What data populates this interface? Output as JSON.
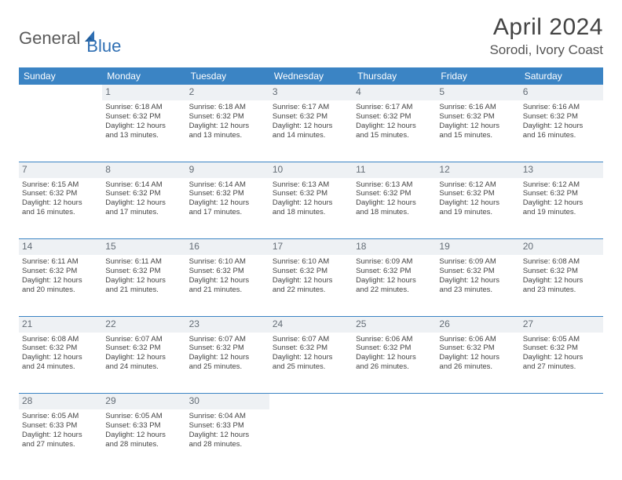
{
  "logo": {
    "part1": "General",
    "part2": "Blue"
  },
  "title": {
    "month": "April 2024",
    "location": "Sorodi, Ivory Coast"
  },
  "colors": {
    "header_bg": "#3b84c4",
    "daynum_bg": "#eef1f4",
    "rule": "#3b84c4"
  },
  "weekdays": [
    "Sunday",
    "Monday",
    "Tuesday",
    "Wednesday",
    "Thursday",
    "Friday",
    "Saturday"
  ],
  "weeks": [
    [
      null,
      {
        "n": "1",
        "sr": "Sunrise: 6:18 AM",
        "ss": "Sunset: 6:32 PM",
        "d1": "Daylight: 12 hours",
        "d2": "and 13 minutes."
      },
      {
        "n": "2",
        "sr": "Sunrise: 6:18 AM",
        "ss": "Sunset: 6:32 PM",
        "d1": "Daylight: 12 hours",
        "d2": "and 13 minutes."
      },
      {
        "n": "3",
        "sr": "Sunrise: 6:17 AM",
        "ss": "Sunset: 6:32 PM",
        "d1": "Daylight: 12 hours",
        "d2": "and 14 minutes."
      },
      {
        "n": "4",
        "sr": "Sunrise: 6:17 AM",
        "ss": "Sunset: 6:32 PM",
        "d1": "Daylight: 12 hours",
        "d2": "and 15 minutes."
      },
      {
        "n": "5",
        "sr": "Sunrise: 6:16 AM",
        "ss": "Sunset: 6:32 PM",
        "d1": "Daylight: 12 hours",
        "d2": "and 15 minutes."
      },
      {
        "n": "6",
        "sr": "Sunrise: 6:16 AM",
        "ss": "Sunset: 6:32 PM",
        "d1": "Daylight: 12 hours",
        "d2": "and 16 minutes."
      }
    ],
    [
      {
        "n": "7",
        "sr": "Sunrise: 6:15 AM",
        "ss": "Sunset: 6:32 PM",
        "d1": "Daylight: 12 hours",
        "d2": "and 16 minutes."
      },
      {
        "n": "8",
        "sr": "Sunrise: 6:14 AM",
        "ss": "Sunset: 6:32 PM",
        "d1": "Daylight: 12 hours",
        "d2": "and 17 minutes."
      },
      {
        "n": "9",
        "sr": "Sunrise: 6:14 AM",
        "ss": "Sunset: 6:32 PM",
        "d1": "Daylight: 12 hours",
        "d2": "and 17 minutes."
      },
      {
        "n": "10",
        "sr": "Sunrise: 6:13 AM",
        "ss": "Sunset: 6:32 PM",
        "d1": "Daylight: 12 hours",
        "d2": "and 18 minutes."
      },
      {
        "n": "11",
        "sr": "Sunrise: 6:13 AM",
        "ss": "Sunset: 6:32 PM",
        "d1": "Daylight: 12 hours",
        "d2": "and 18 minutes."
      },
      {
        "n": "12",
        "sr": "Sunrise: 6:12 AM",
        "ss": "Sunset: 6:32 PM",
        "d1": "Daylight: 12 hours",
        "d2": "and 19 minutes."
      },
      {
        "n": "13",
        "sr": "Sunrise: 6:12 AM",
        "ss": "Sunset: 6:32 PM",
        "d1": "Daylight: 12 hours",
        "d2": "and 19 minutes."
      }
    ],
    [
      {
        "n": "14",
        "sr": "Sunrise: 6:11 AM",
        "ss": "Sunset: 6:32 PM",
        "d1": "Daylight: 12 hours",
        "d2": "and 20 minutes."
      },
      {
        "n": "15",
        "sr": "Sunrise: 6:11 AM",
        "ss": "Sunset: 6:32 PM",
        "d1": "Daylight: 12 hours",
        "d2": "and 21 minutes."
      },
      {
        "n": "16",
        "sr": "Sunrise: 6:10 AM",
        "ss": "Sunset: 6:32 PM",
        "d1": "Daylight: 12 hours",
        "d2": "and 21 minutes."
      },
      {
        "n": "17",
        "sr": "Sunrise: 6:10 AM",
        "ss": "Sunset: 6:32 PM",
        "d1": "Daylight: 12 hours",
        "d2": "and 22 minutes."
      },
      {
        "n": "18",
        "sr": "Sunrise: 6:09 AM",
        "ss": "Sunset: 6:32 PM",
        "d1": "Daylight: 12 hours",
        "d2": "and 22 minutes."
      },
      {
        "n": "19",
        "sr": "Sunrise: 6:09 AM",
        "ss": "Sunset: 6:32 PM",
        "d1": "Daylight: 12 hours",
        "d2": "and 23 minutes."
      },
      {
        "n": "20",
        "sr": "Sunrise: 6:08 AM",
        "ss": "Sunset: 6:32 PM",
        "d1": "Daylight: 12 hours",
        "d2": "and 23 minutes."
      }
    ],
    [
      {
        "n": "21",
        "sr": "Sunrise: 6:08 AM",
        "ss": "Sunset: 6:32 PM",
        "d1": "Daylight: 12 hours",
        "d2": "and 24 minutes."
      },
      {
        "n": "22",
        "sr": "Sunrise: 6:07 AM",
        "ss": "Sunset: 6:32 PM",
        "d1": "Daylight: 12 hours",
        "d2": "and 24 minutes."
      },
      {
        "n": "23",
        "sr": "Sunrise: 6:07 AM",
        "ss": "Sunset: 6:32 PM",
        "d1": "Daylight: 12 hours",
        "d2": "and 25 minutes."
      },
      {
        "n": "24",
        "sr": "Sunrise: 6:07 AM",
        "ss": "Sunset: 6:32 PM",
        "d1": "Daylight: 12 hours",
        "d2": "and 25 minutes."
      },
      {
        "n": "25",
        "sr": "Sunrise: 6:06 AM",
        "ss": "Sunset: 6:32 PM",
        "d1": "Daylight: 12 hours",
        "d2": "and 26 minutes."
      },
      {
        "n": "26",
        "sr": "Sunrise: 6:06 AM",
        "ss": "Sunset: 6:32 PM",
        "d1": "Daylight: 12 hours",
        "d2": "and 26 minutes."
      },
      {
        "n": "27",
        "sr": "Sunrise: 6:05 AM",
        "ss": "Sunset: 6:32 PM",
        "d1": "Daylight: 12 hours",
        "d2": "and 27 minutes."
      }
    ],
    [
      {
        "n": "28",
        "sr": "Sunrise: 6:05 AM",
        "ss": "Sunset: 6:33 PM",
        "d1": "Daylight: 12 hours",
        "d2": "and 27 minutes."
      },
      {
        "n": "29",
        "sr": "Sunrise: 6:05 AM",
        "ss": "Sunset: 6:33 PM",
        "d1": "Daylight: 12 hours",
        "d2": "and 28 minutes."
      },
      {
        "n": "30",
        "sr": "Sunrise: 6:04 AM",
        "ss": "Sunset: 6:33 PM",
        "d1": "Daylight: 12 hours",
        "d2": "and 28 minutes."
      },
      null,
      null,
      null,
      null
    ]
  ]
}
